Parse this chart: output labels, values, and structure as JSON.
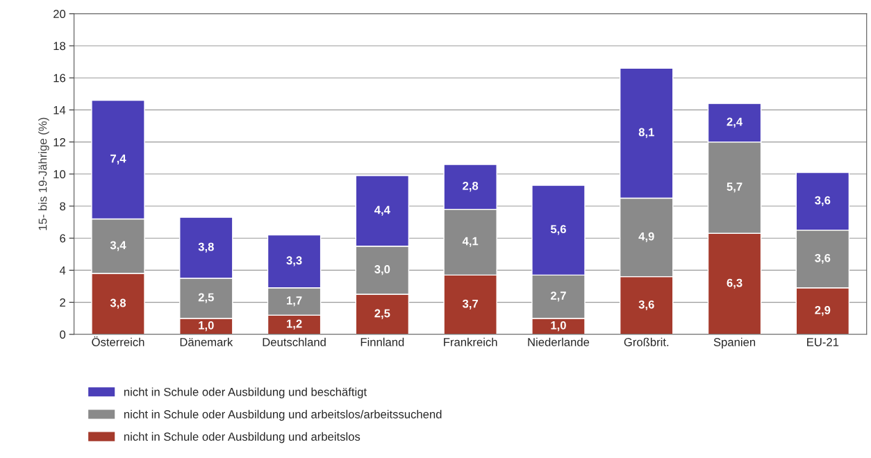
{
  "chart_data": {
    "type": "bar",
    "stacked": true,
    "ylabel": "15- bis 19-Jährige (%)",
    "categories": [
      "Österreich",
      "Dänemark",
      "Deutschland",
      "Finnland",
      "Frankreich",
      "Niederlande",
      "Großbrit.",
      "Spanien",
      "EU-21"
    ],
    "series": [
      {
        "name": "nicht in Schule oder Ausbildung und arbeitslos",
        "color": "#a53a2c",
        "values": [
          3.8,
          1.0,
          1.2,
          2.5,
          3.7,
          1.0,
          3.6,
          6.3,
          2.9
        ],
        "value_labels": [
          "3,8",
          "1,0",
          "1,2",
          "2,5",
          "3,7",
          "1,0",
          "3,6",
          "6,3",
          "2,9"
        ]
      },
      {
        "name": "nicht in Schule oder Ausbildung und arbeitslos/arbeitssuchend",
        "color": "#8a8a8a",
        "values": [
          3.4,
          2.5,
          1.7,
          3.0,
          4.1,
          2.7,
          4.9,
          5.7,
          3.6
        ],
        "value_labels": [
          "3,4",
          "2,5",
          "1,7",
          "3,0",
          "4,1",
          "2,7",
          "4,9",
          "5,7",
          "3,6"
        ]
      },
      {
        "name": "nicht in Schule oder Ausbildung und beschäftigt",
        "color": "#4b3fb8",
        "values": [
          7.4,
          3.8,
          3.3,
          4.4,
          2.8,
          5.6,
          8.1,
          2.4,
          3.6
        ],
        "value_labels": [
          "7,4",
          "3,8",
          "3,3",
          "4,4",
          "2,8",
          "5,6",
          "8,1",
          "2,4",
          "3,6"
        ]
      }
    ],
    "ylim": [
      0,
      20
    ],
    "yticks": [
      0,
      2,
      4,
      6,
      8,
      10,
      12,
      14,
      16,
      18,
      20
    ],
    "grid": "y",
    "legend": "bottom left"
  }
}
